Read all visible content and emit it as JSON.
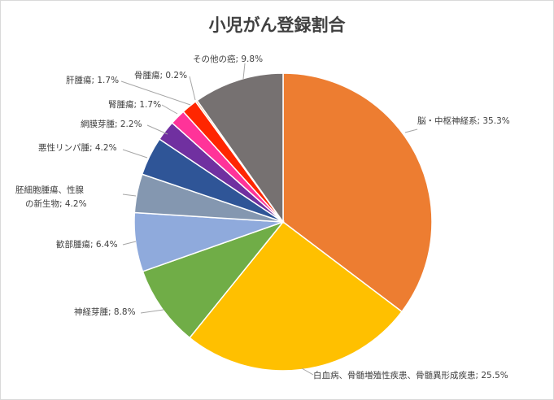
{
  "chart_data": {
    "type": "pie",
    "title": "小児がん登録割合",
    "legend": "none",
    "slices": [
      {
        "name": "脳・中枢神経系",
        "value": 35.3,
        "label": "脳・中枢神経系; 35.3%",
        "color": "#ED7D31"
      },
      {
        "name": "白血病、骨髄増殖性疾患、骨髄異形成疾患",
        "value": 25.5,
        "label": "白血病、骨髄増殖性疾患、骨髄異形成疾患; 25.5%",
        "color": "#FFC000"
      },
      {
        "name": "神経芽腫",
        "value": 8.8,
        "label": "神経芽腫; 8.8%",
        "color": "#70AD47"
      },
      {
        "name": "軟部腫瘍",
        "value": 6.4,
        "label": "歓部腫瘍; 6.4%",
        "color": "#8FAADC"
      },
      {
        "name": "胚細胞腫瘍、性腺の新生物",
        "value": 4.2,
        "label_lines": [
          "胚細胞腫瘍、性腺",
          "の新生物; 4.2%"
        ],
        "color": "#8497B0"
      },
      {
        "name": "悪性リンパ腫",
        "value": 4.2,
        "label": "悪性リンパ腫; 4.2%",
        "color": "#2F5597"
      },
      {
        "name": "網膜芽腫",
        "value": 2.2,
        "label": "網膜芽腫; 2.2%",
        "color": "#7030A0"
      },
      {
        "name": "腎腫瘍",
        "value": 1.7,
        "label": "腎腫瘍; 1.7%",
        "color": "#FF3399"
      },
      {
        "name": "肝腫瘍",
        "value": 1.7,
        "label": "肝腫瘍; 1.7%",
        "color": "#FF2600"
      },
      {
        "name": "骨腫瘍",
        "value": 0.2,
        "label": "骨腫瘍; 0.2%",
        "color": "#F4B183"
      },
      {
        "name": "その他の癌",
        "value": 9.8,
        "label": "その他の癌; 9.8%",
        "color": "#767171"
      }
    ]
  }
}
